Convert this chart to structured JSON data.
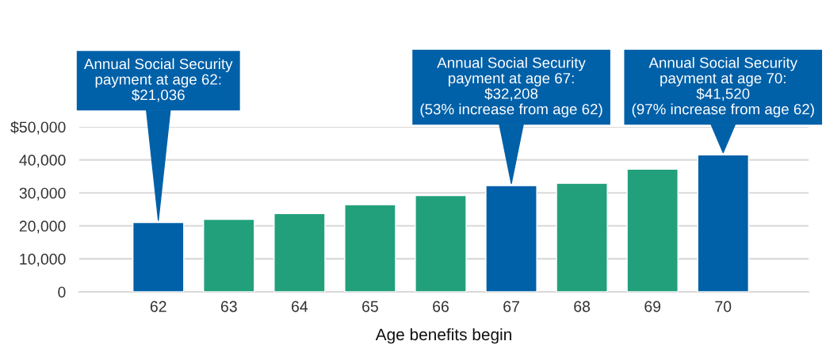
{
  "chart_data": {
    "type": "bar",
    "xlabel": "Age benefits begin",
    "categories": [
      "62",
      "63",
      "64",
      "65",
      "66",
      "67",
      "68",
      "69",
      "70"
    ],
    "values": [
      21036,
      22000,
      23700,
      26400,
      29200,
      32208,
      32900,
      37200,
      41520
    ],
    "colors": [
      "#0060a8",
      "#22a07c",
      "#22a07c",
      "#22a07c",
      "#22a07c",
      "#0060a8",
      "#22a07c",
      "#22a07c",
      "#0060a8"
    ],
    "ylim": [
      0,
      50000
    ],
    "yticks": [
      0,
      {
        "value": 10000,
        "label": "10,000"
      },
      {
        "value": 20000,
        "label": "20,000"
      },
      {
        "value": 30000,
        "label": "30,000"
      },
      {
        "value": 40000,
        "label": "40,000"
      },
      {
        "value": 50000,
        "label": "$50,000"
      }
    ],
    "grid": "y",
    "annotations": [
      {
        "text": "Annual Social Security\npayment at age 62:\n$21,036",
        "x": "62",
        "y": 21036
      },
      {
        "text": "Annual Social Security\npayment at age 67:\n$32,208\n(53% increase from age 62)",
        "x": "67",
        "y": 32208
      },
      {
        "text": "Annual Social Security\npayment at age 70:\n$41,520\n(97% increase from age 62)",
        "x": "70",
        "y": 41520
      }
    ]
  }
}
